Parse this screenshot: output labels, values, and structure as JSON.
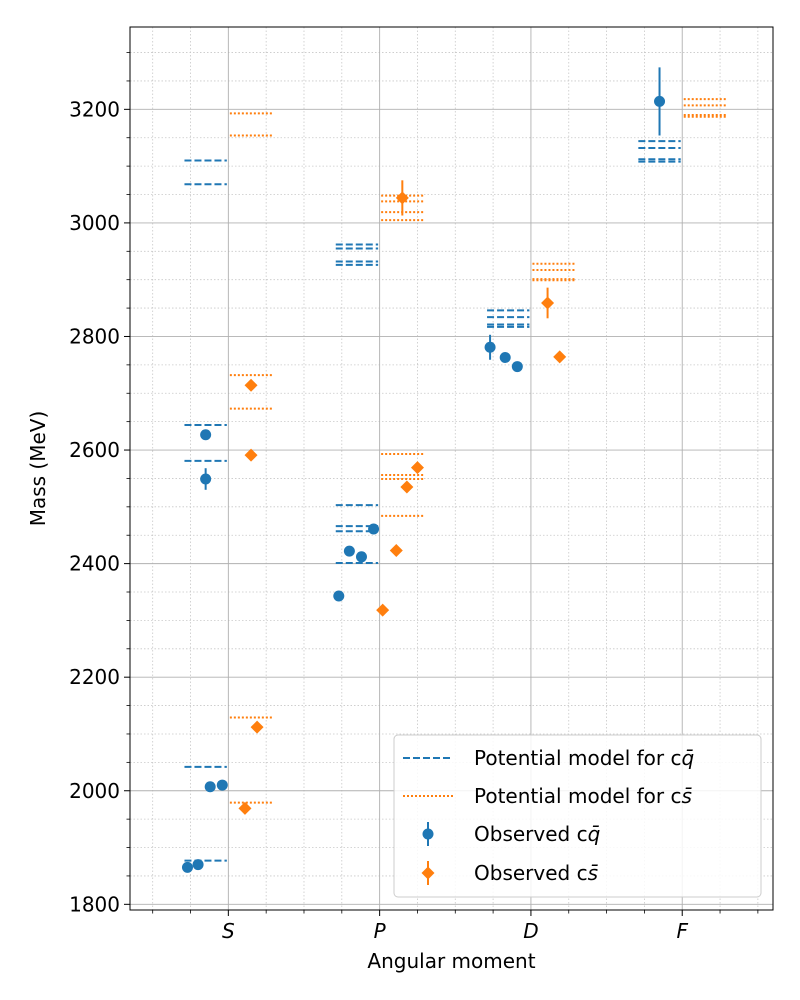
{
  "chart_data": {
    "type": "scatter",
    "xlabel": "Angular moment",
    "ylabel": "Mass (MeV)",
    "categories": [
      "S",
      "P",
      "D",
      "F"
    ],
    "xlim": [
      -0.65,
      3.6
    ],
    "ylim": [
      1790,
      3345
    ],
    "yticks": [
      1800,
      2000,
      2200,
      2400,
      2600,
      2800,
      3000,
      3200
    ],
    "grid": true,
    "minor_grid": true,
    "legend_position": "lower-right",
    "legend": [
      {
        "key": "model_cq",
        "label": "Potential model for c",
        "math": "q̄"
      },
      {
        "key": "model_cs",
        "label": "Potential model for c",
        "math": "s̄"
      },
      {
        "key": "obs_cq",
        "label": "Observed c",
        "math": "q̄"
      },
      {
        "key": "obs_cs",
        "label": "Observed c",
        "math": "s̄"
      }
    ],
    "colors": {
      "cq": "#1f77b4",
      "cs": "#ff7f0e"
    },
    "model_cq": [
      {
        "x0": -0.29,
        "x1": -0.01,
        "y": 1877
      },
      {
        "x0": -0.29,
        "x1": -0.01,
        "y": 2042
      },
      {
        "x0": -0.29,
        "x1": -0.01,
        "y": 2581
      },
      {
        "x0": -0.29,
        "x1": -0.01,
        "y": 2644
      },
      {
        "x0": -0.29,
        "x1": -0.01,
        "y": 3068
      },
      {
        "x0": -0.29,
        "x1": -0.01,
        "y": 3110
      },
      {
        "x0": 0.71,
        "x1": 0.99,
        "y": 2401
      },
      {
        "x0": 0.71,
        "x1": 0.99,
        "y": 2457
      },
      {
        "x0": 0.71,
        "x1": 0.99,
        "y": 2466
      },
      {
        "x0": 0.71,
        "x1": 0.99,
        "y": 2503
      },
      {
        "x0": 0.71,
        "x1": 0.99,
        "y": 2926
      },
      {
        "x0": 0.71,
        "x1": 0.99,
        "y": 2932
      },
      {
        "x0": 0.71,
        "x1": 0.99,
        "y": 2955
      },
      {
        "x0": 0.71,
        "x1": 0.99,
        "y": 2962
      },
      {
        "x0": 1.71,
        "x1": 1.99,
        "y": 2817
      },
      {
        "x0": 1.71,
        "x1": 1.99,
        "y": 2821
      },
      {
        "x0": 1.71,
        "x1": 1.99,
        "y": 2834
      },
      {
        "x0": 1.71,
        "x1": 1.99,
        "y": 2846
      },
      {
        "x0": 2.71,
        "x1": 2.99,
        "y": 3108
      },
      {
        "x0": 2.71,
        "x1": 2.99,
        "y": 3112
      },
      {
        "x0": 2.71,
        "x1": 2.99,
        "y": 3132
      },
      {
        "x0": 2.71,
        "x1": 2.99,
        "y": 3144
      }
    ],
    "model_cs": [
      {
        "x0": 0.01,
        "x1": 0.29,
        "y": 1979
      },
      {
        "x0": 0.01,
        "x1": 0.29,
        "y": 2129
      },
      {
        "x0": 0.01,
        "x1": 0.29,
        "y": 2673
      },
      {
        "x0": 0.01,
        "x1": 0.29,
        "y": 2732
      },
      {
        "x0": 0.01,
        "x1": 0.29,
        "y": 3154
      },
      {
        "x0": 0.01,
        "x1": 0.29,
        "y": 3193
      },
      {
        "x0": 1.01,
        "x1": 1.29,
        "y": 2484
      },
      {
        "x0": 1.01,
        "x1": 1.29,
        "y": 2549
      },
      {
        "x0": 1.01,
        "x1": 1.29,
        "y": 2556
      },
      {
        "x0": 1.01,
        "x1": 1.29,
        "y": 2593
      },
      {
        "x0": 1.01,
        "x1": 1.29,
        "y": 3005
      },
      {
        "x0": 1.01,
        "x1": 1.29,
        "y": 3019
      },
      {
        "x0": 1.01,
        "x1": 1.29,
        "y": 3038
      },
      {
        "x0": 1.01,
        "x1": 1.29,
        "y": 3048
      },
      {
        "x0": 2.01,
        "x1": 2.29,
        "y": 2899
      },
      {
        "x0": 2.01,
        "x1": 2.29,
        "y": 2901
      },
      {
        "x0": 2.01,
        "x1": 2.29,
        "y": 2917
      },
      {
        "x0": 2.01,
        "x1": 2.29,
        "y": 2928
      },
      {
        "x0": 3.01,
        "x1": 3.29,
        "y": 3187
      },
      {
        "x0": 3.01,
        "x1": 3.29,
        "y": 3190
      },
      {
        "x0": 3.01,
        "x1": 3.29,
        "y": 3207
      },
      {
        "x0": 3.01,
        "x1": 3.29,
        "y": 3218
      }
    ],
    "obs_cq": [
      {
        "x": -0.27,
        "y": 1865,
        "err": 0
      },
      {
        "x": -0.2,
        "y": 1870,
        "err": 0
      },
      {
        "x": -0.12,
        "y": 2007,
        "err": 0
      },
      {
        "x": -0.04,
        "y": 2010,
        "err": 0
      },
      {
        "x": -0.15,
        "y": 2549,
        "err": 19
      },
      {
        "x": -0.15,
        "y": 2627,
        "err": 0
      },
      {
        "x": 0.73,
        "y": 2343,
        "err": 0
      },
      {
        "x": 0.8,
        "y": 2422,
        "err": 0
      },
      {
        "x": 0.88,
        "y": 2412,
        "err": 0
      },
      {
        "x": 0.96,
        "y": 2461,
        "err": 0
      },
      {
        "x": 1.73,
        "y": 2781,
        "err": 22
      },
      {
        "x": 1.83,
        "y": 2763,
        "err": 0
      },
      {
        "x": 1.91,
        "y": 2747,
        "err": 0
      },
      {
        "x": 2.85,
        "y": 3214,
        "err": 60
      }
    ],
    "obs_cs": [
      {
        "x": 0.11,
        "y": 1969,
        "err": 0
      },
      {
        "x": 0.19,
        "y": 2112,
        "err": 0
      },
      {
        "x": 0.15,
        "y": 2591,
        "err": 0
      },
      {
        "x": 0.15,
        "y": 2714,
        "err": 0
      },
      {
        "x": 1.02,
        "y": 2318,
        "err": 0
      },
      {
        "x": 1.11,
        "y": 2423,
        "err": 0
      },
      {
        "x": 1.18,
        "y": 2535,
        "err": 0
      },
      {
        "x": 1.25,
        "y": 2569,
        "err": 0
      },
      {
        "x": 1.15,
        "y": 3044,
        "err": 31
      },
      {
        "x": 2.11,
        "y": 2859,
        "err": 27
      },
      {
        "x": 2.19,
        "y": 2764,
        "err": 0
      }
    ]
  }
}
